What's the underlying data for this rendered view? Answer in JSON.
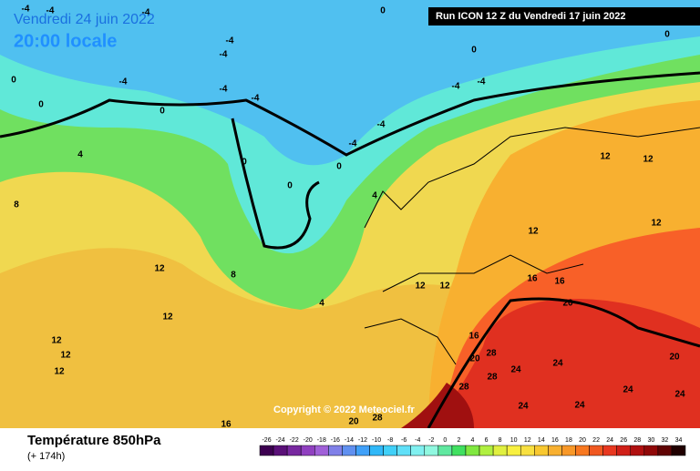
{
  "header": {
    "date": "Vendredi 24 juin 2022",
    "time": "20:00 locale",
    "run": "Run ICON 12 Z du Vendredi 17 juin 2022"
  },
  "copyright": "Copyright © 2022 Meteociel.fr",
  "footer": {
    "title": "Température 850hPa",
    "subtitle": "(+ 174h)"
  },
  "colorbar": {
    "ticks": [
      -26,
      -24,
      -22,
      -20,
      -18,
      -16,
      -14,
      -12,
      -10,
      -8,
      -6,
      -4,
      -2,
      0,
      2,
      4,
      6,
      8,
      10,
      12,
      14,
      16,
      18,
      20,
      22,
      24,
      26,
      28,
      30,
      32,
      34
    ],
    "colors": [
      "#3c0050",
      "#5a1078",
      "#7828a0",
      "#9040c0",
      "#a060d8",
      "#8080e8",
      "#6090f0",
      "#40a0f8",
      "#30b8f8",
      "#40d0f8",
      "#60e0f8",
      "#80f0f0",
      "#90f8e0",
      "#60e8a0",
      "#40e060",
      "#80e840",
      "#b0f040",
      "#e0f040",
      "#f8f040",
      "#f8e040",
      "#f8c830",
      "#f8b030",
      "#f89828",
      "#f87820",
      "#f05820",
      "#e83820",
      "#d02018",
      "#b01010",
      "#900808",
      "#600404",
      "#200000"
    ]
  },
  "map_labels": [
    "-4",
    "-4",
    "-4",
    "-4",
    "-4",
    "-4",
    "-4",
    "-4",
    "-4",
    "-4",
    "-4",
    "-4",
    "0",
    "0",
    "0",
    "0",
    "0",
    "0",
    "0",
    "0",
    "0",
    "4",
    "4",
    "4",
    "8",
    "8",
    "12",
    "12",
    "12",
    "12",
    "12",
    "12",
    "12",
    "12",
    "12",
    "12",
    "12",
    "16",
    "16",
    "16",
    "16",
    "20",
    "20",
    "20",
    "24",
    "24",
    "24",
    "24",
    "24",
    "24",
    "28",
    "28",
    "28",
    "28",
    "20"
  ]
}
